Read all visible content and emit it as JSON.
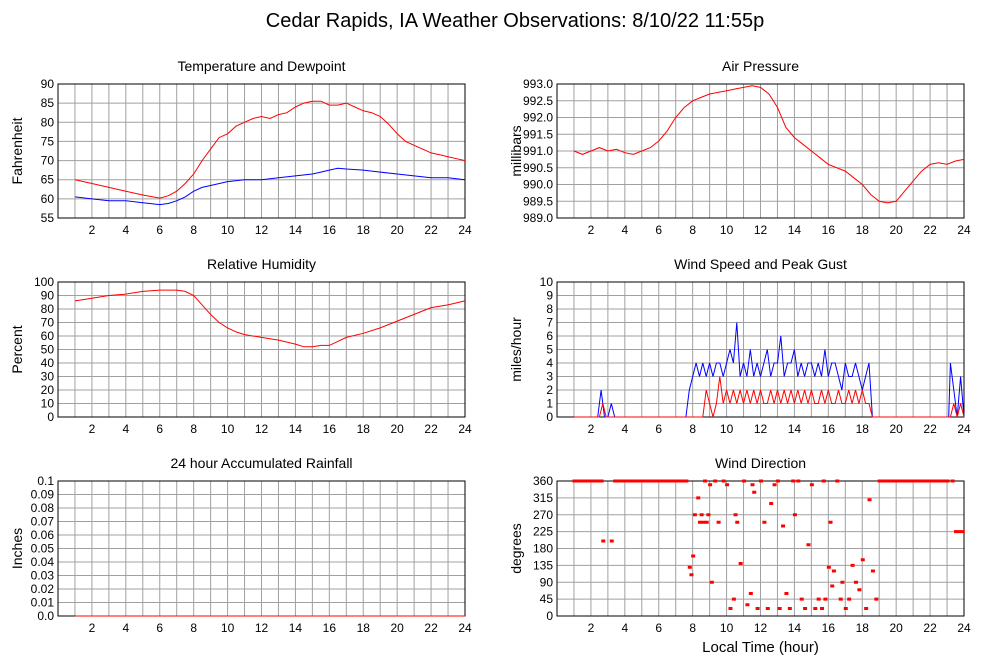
{
  "page_title": "Cedar Rapids, IA Weather Observations: 8/10/22 11:55p",
  "colors": {
    "red": "#ff0000",
    "blue": "#0000ff",
    "grid": "#a0a0a0",
    "axis": "#000000"
  },
  "chart_data": [
    {
      "id": "temp",
      "type": "line",
      "title": "Temperature and Dewpoint",
      "xlabel": "",
      "ylabel": "Fahrenheit",
      "xlim": [
        0,
        24
      ],
      "ylim": [
        55,
        90
      ],
      "x_ticks": [
        2,
        4,
        6,
        8,
        10,
        12,
        14,
        16,
        18,
        20,
        22,
        24
      ],
      "y_ticks": [
        55,
        60,
        65,
        70,
        75,
        80,
        85,
        90
      ],
      "series": [
        {
          "color": "#ff0000",
          "x": [
            1,
            1.5,
            2,
            3,
            4,
            5,
            6,
            6.5,
            7,
            7.5,
            8,
            8.5,
            9,
            9.5,
            10,
            10.5,
            11,
            11.5,
            12,
            12.5,
            13,
            13.5,
            14,
            14.5,
            15,
            15.5,
            16,
            16.5,
            17,
            17.5,
            18,
            18.5,
            19,
            19.5,
            20,
            20.5,
            21,
            21.5,
            22,
            22.5,
            23,
            23.5,
            24
          ],
          "values": [
            65,
            64.5,
            64,
            63,
            62,
            61,
            60.2,
            60.8,
            62,
            64,
            66.5,
            70,
            73,
            76,
            77,
            79,
            80,
            81,
            81.5,
            81,
            82,
            82.5,
            84,
            85,
            85.5,
            85.5,
            84.5,
            84.5,
            85,
            84,
            83,
            82.5,
            81.5,
            79.5,
            77,
            75,
            74,
            73,
            72,
            71.5,
            71,
            70.5,
            70
          ]
        },
        {
          "color": "#0000ff",
          "x": [
            1,
            2,
            3,
            4,
            5,
            6,
            6.5,
            7,
            7.5,
            8,
            8.5,
            9,
            10,
            11,
            12,
            13,
            14,
            15,
            15.5,
            16,
            16.5,
            17,
            18,
            19,
            20,
            21,
            22,
            23,
            24
          ],
          "values": [
            60.5,
            60,
            59.5,
            59.5,
            59,
            58.5,
            58.8,
            59.5,
            60.5,
            62,
            63,
            63.5,
            64.5,
            65,
            65,
            65.5,
            66,
            66.5,
            67,
            67.5,
            68,
            67.8,
            67.5,
            67,
            66.5,
            66,
            65.5,
            65.5,
            65
          ]
        }
      ]
    },
    {
      "id": "pressure",
      "type": "line",
      "title": "Air Pressure",
      "xlabel": "",
      "ylabel": "millibars",
      "xlim": [
        0,
        24
      ],
      "ylim": [
        989.0,
        993.0
      ],
      "x_ticks": [
        2,
        4,
        6,
        8,
        10,
        12,
        14,
        16,
        18,
        20,
        22,
        24
      ],
      "y_ticks": [
        "989.0",
        "989.5",
        "990.0",
        "990.5",
        "991.0",
        "991.5",
        "992.0",
        "992.5",
        "993.0"
      ],
      "series": [
        {
          "color": "#ff0000",
          "x": [
            1,
            1.5,
            2,
            2.5,
            3,
            3.5,
            4,
            4.5,
            5,
            5.5,
            6,
            6.5,
            7,
            7.5,
            8,
            8.5,
            9,
            9.5,
            10,
            10.5,
            11,
            11.5,
            12,
            12.5,
            13,
            13.5,
            14,
            14.5,
            15,
            15.5,
            16,
            16.5,
            17,
            17.5,
            18,
            18.5,
            19,
            19.5,
            20,
            20.5,
            21,
            21.5,
            22,
            22.5,
            23,
            23.5,
            24
          ],
          "values": [
            991.0,
            990.9,
            991.0,
            991.1,
            991.0,
            991.05,
            990.95,
            990.9,
            991.0,
            991.1,
            991.3,
            991.6,
            992.0,
            992.3,
            992.5,
            992.6,
            992.7,
            992.75,
            992.8,
            992.85,
            992.9,
            992.95,
            992.9,
            992.7,
            992.3,
            991.7,
            991.4,
            991.2,
            991.0,
            990.8,
            990.6,
            990.5,
            990.4,
            990.2,
            990.0,
            989.7,
            989.5,
            989.45,
            989.5,
            989.8,
            990.1,
            990.4,
            990.6,
            990.65,
            990.6,
            990.7,
            990.75
          ]
        }
      ]
    },
    {
      "id": "humidity",
      "type": "line",
      "title": "Relative Humidity",
      "xlabel": "",
      "ylabel": "Percent",
      "xlim": [
        0,
        24
      ],
      "ylim": [
        0,
        100
      ],
      "x_ticks": [
        2,
        4,
        6,
        8,
        10,
        12,
        14,
        16,
        18,
        20,
        22,
        24
      ],
      "y_ticks": [
        0,
        10,
        20,
        30,
        40,
        50,
        60,
        70,
        80,
        90,
        100
      ],
      "series": [
        {
          "color": "#ff0000",
          "x": [
            1,
            1.5,
            2,
            3,
            4,
            5,
            6,
            7,
            7.5,
            8,
            8.5,
            9,
            9.5,
            10,
            10.5,
            11,
            12,
            13,
            14,
            14.5,
            15,
            15.5,
            16,
            16.5,
            17,
            18,
            19,
            20,
            21,
            22,
            23,
            24
          ],
          "values": [
            86,
            87,
            88,
            90,
            91,
            93,
            94,
            94,
            93,
            90,
            83,
            76,
            70,
            66,
            63,
            61,
            59,
            57,
            54,
            52,
            52,
            53,
            53,
            56,
            59,
            62,
            66,
            71,
            76,
            81,
            83,
            86
          ]
        }
      ]
    },
    {
      "id": "wind",
      "type": "line",
      "title": "Wind Speed and Peak Gust",
      "xlabel": "",
      "ylabel": "miles/hour",
      "xlim": [
        0,
        24
      ],
      "ylim": [
        0,
        10
      ],
      "x_ticks": [
        2,
        4,
        6,
        8,
        10,
        12,
        14,
        16,
        18,
        20,
        22,
        24
      ],
      "y_ticks": [
        0,
        1,
        2,
        3,
        4,
        5,
        6,
        7,
        8,
        9,
        10
      ],
      "series": [
        {
          "color": "#0000ff",
          "x": [
            1,
            2.4,
            2.6,
            2.8,
            3.0,
            3.2,
            3.4,
            3.6,
            7.6,
            7.8,
            8.0,
            8.2,
            8.4,
            8.6,
            8.8,
            9.0,
            9.2,
            9.4,
            9.6,
            9.8,
            10.0,
            10.2,
            10.4,
            10.6,
            10.8,
            11.0,
            11.2,
            11.4,
            11.6,
            11.8,
            12.0,
            12.2,
            12.4,
            12.6,
            12.8,
            13.0,
            13.2,
            13.4,
            13.6,
            13.8,
            14.0,
            14.2,
            14.4,
            14.6,
            14.8,
            15.0,
            15.2,
            15.4,
            15.6,
            15.8,
            16.0,
            16.2,
            16.4,
            16.6,
            16.8,
            17.0,
            17.2,
            17.4,
            17.6,
            17.8,
            18.0,
            18.2,
            18.4,
            18.6,
            23.1,
            23.2,
            23.4,
            23.6,
            23.8,
            24
          ],
          "values": [
            0,
            0,
            2,
            0,
            0,
            1,
            0,
            0,
            0,
            2,
            3,
            4,
            3,
            4,
            3,
            4,
            3,
            4,
            4,
            3,
            4,
            5,
            4,
            7,
            3,
            4,
            3,
            5,
            3,
            4,
            3,
            4,
            5,
            3,
            4,
            4,
            6,
            3,
            4,
            4,
            5,
            3,
            4,
            3,
            4,
            4,
            3,
            4,
            3,
            5,
            3,
            4,
            4,
            3,
            2,
            4,
            3,
            3,
            4,
            3,
            2,
            3,
            4,
            0,
            0,
            4,
            2,
            0,
            3,
            0
          ]
        },
        {
          "color": "#ff0000",
          "x": [
            1,
            2.5,
            2.7,
            2.9,
            8.6,
            8.8,
            9.0,
            9.2,
            9.4,
            9.6,
            9.8,
            10.0,
            10.2,
            10.4,
            10.6,
            10.8,
            11.0,
            11.2,
            11.4,
            11.6,
            11.8,
            12.0,
            12.2,
            12.4,
            12.6,
            12.8,
            13.0,
            13.2,
            13.4,
            13.6,
            13.8,
            14.0,
            14.2,
            14.4,
            14.6,
            14.8,
            15.0,
            15.2,
            15.4,
            15.6,
            15.8,
            16.0,
            16.2,
            16.4,
            16.6,
            16.8,
            17.0,
            17.2,
            17.4,
            17.6,
            17.8,
            18.0,
            18.2,
            18.4,
            18.6,
            23.2,
            23.4,
            23.6,
            23.8,
            24
          ],
          "values": [
            0,
            0,
            1,
            0,
            0,
            2,
            1,
            0,
            1,
            3,
            1,
            2,
            1,
            2,
            1,
            2,
            1,
            2,
            1,
            2,
            1,
            2,
            1,
            1,
            2,
            1,
            2,
            1,
            2,
            1,
            2,
            1,
            2,
            1,
            2,
            1,
            2,
            1,
            1,
            2,
            1,
            2,
            1,
            1,
            2,
            1,
            1,
            2,
            1,
            2,
            1,
            2,
            1,
            1,
            0,
            0,
            1,
            0,
            1,
            0
          ]
        }
      ]
    },
    {
      "id": "rain",
      "type": "line",
      "title": "24 hour Accumulated Rainfall",
      "xlabel": "",
      "ylabel": "Inches",
      "xlim": [
        0,
        24
      ],
      "ylim": [
        0,
        0.1
      ],
      "x_ticks": [
        2,
        4,
        6,
        8,
        10,
        12,
        14,
        16,
        18,
        20,
        22,
        24
      ],
      "y_ticks": [
        "0.0",
        "0.01",
        "0.02",
        "0.03",
        "0.04",
        "0.05",
        "0.06",
        "0.07",
        "0.08",
        "0.09",
        "0.1"
      ],
      "series": [
        {
          "color": "#ff0000",
          "x": [
            1,
            24
          ],
          "values": [
            0,
            0
          ]
        }
      ]
    },
    {
      "id": "direction",
      "type": "scatter",
      "title": "Wind Direction",
      "xlabel": "Local Time (hour)",
      "ylabel": "degrees",
      "xlim": [
        0,
        24
      ],
      "ylim": [
        0,
        360
      ],
      "x_ticks": [
        2,
        4,
        6,
        8,
        10,
        12,
        14,
        16,
        18,
        20,
        22,
        24
      ],
      "y_ticks": [
        0,
        45,
        90,
        135,
        180,
        225,
        270,
        315,
        360
      ],
      "series": [
        {
          "color": "#ff0000",
          "x": [
            1.0,
            1.2,
            1.4,
            1.6,
            1.8,
            2.0,
            2.2,
            2.4,
            2.6,
            2.7,
            3.2,
            3.4,
            3.6,
            3.8,
            4.0,
            4.2,
            4.4,
            4.6,
            4.8,
            5.0,
            5.2,
            5.4,
            5.6,
            5.8,
            6.0,
            6.2,
            6.4,
            6.6,
            6.8,
            7.0,
            7.2,
            7.4,
            7.6,
            7.8,
            7.9,
            8.0,
            8.1,
            8.3,
            8.4,
            8.5,
            8.6,
            8.7,
            8.8,
            8.9,
            9.0,
            9.1,
            9.3,
            9.5,
            9.8,
            10.0,
            10.2,
            10.4,
            10.5,
            10.6,
            10.8,
            11.0,
            11.2,
            11.4,
            11.5,
            11.6,
            11.8,
            12.0,
            12.2,
            12.4,
            12.6,
            12.8,
            13.0,
            13.1,
            13.3,
            13.5,
            13.7,
            13.9,
            14.0,
            14.2,
            14.4,
            14.6,
            14.8,
            15.0,
            15.2,
            15.4,
            15.6,
            15.7,
            15.8,
            16.0,
            16.1,
            16.2,
            16.3,
            16.5,
            16.7,
            16.8,
            17.0,
            17.2,
            17.4,
            17.6,
            17.8,
            18.0,
            18.2,
            18.4,
            18.6,
            18.8,
            19.0,
            19.2,
            19.4,
            19.6,
            19.8,
            20.0,
            20.2,
            20.4,
            20.6,
            20.8,
            21.0,
            21.2,
            21.4,
            21.6,
            21.8,
            22.0,
            22.2,
            22.4,
            22.6,
            22.8,
            23.0,
            23.3,
            23.5,
            23.7,
            23.9
          ],
          "values": [
            360,
            360,
            360,
            360,
            360,
            360,
            360,
            360,
            360,
            200,
            200,
            360,
            360,
            360,
            360,
            360,
            360,
            360,
            360,
            360,
            360,
            360,
            360,
            360,
            360,
            360,
            360,
            360,
            360,
            360,
            360,
            360,
            360,
            130,
            110,
            160,
            270,
            315,
            250,
            270,
            250,
            360,
            250,
            270,
            350,
            90,
            360,
            250,
            360,
            350,
            20,
            45,
            270,
            250,
            140,
            360,
            30,
            60,
            350,
            330,
            20,
            360,
            250,
            20,
            300,
            350,
            360,
            20,
            240,
            60,
            20,
            360,
            270,
            360,
            45,
            20,
            190,
            350,
            20,
            45,
            20,
            360,
            45,
            130,
            250,
            80,
            120,
            360,
            45,
            90,
            20,
            45,
            135,
            90,
            70,
            150,
            20,
            310,
            120,
            45,
            360,
            360,
            360,
            360,
            360,
            360,
            360,
            360,
            360,
            360,
            360,
            360,
            360,
            360,
            360,
            360,
            360,
            360,
            360,
            360,
            360,
            360,
            225,
            225,
            225
          ]
        }
      ]
    }
  ]
}
